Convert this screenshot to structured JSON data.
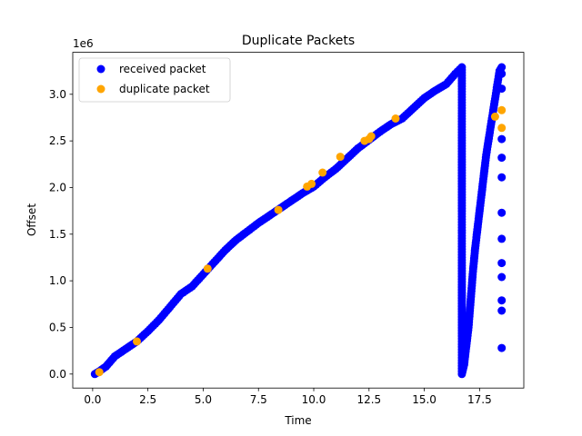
{
  "chart_data": {
    "type": "scatter",
    "title": "Duplicate Packets",
    "xlabel": "Time",
    "ylabel": "Offset",
    "y_multiplier_label": "1e6",
    "xlim": [
      -0.9,
      19.5
    ],
    "ylim": [
      -150000,
      3450000
    ],
    "x_ticks": [
      0.0,
      2.5,
      5.0,
      7.5,
      10.0,
      12.5,
      15.0,
      17.5
    ],
    "x_tick_labels": [
      "0.0",
      "2.5",
      "5.0",
      "7.5",
      "10.0",
      "12.5",
      "15.0",
      "17.5"
    ],
    "y_ticks": [
      0,
      500000,
      1000000,
      1500000,
      2000000,
      2500000,
      3000000
    ],
    "y_tick_labels": [
      "0.0",
      "0.5",
      "1.0",
      "1.5",
      "2.0",
      "2.5",
      "3.0"
    ],
    "grid": false,
    "legend_position": "top-left",
    "series": [
      {
        "name": "received packet",
        "color": "#0000ff",
        "x": [
          0.1,
          0.3,
          0.6,
          1.0,
          1.5,
          2.0,
          2.5,
          3.0,
          3.5,
          4.0,
          4.5,
          5.0,
          5.5,
          6.0,
          6.5,
          7.0,
          7.5,
          8.0,
          8.5,
          9.0,
          9.5,
          10.0,
          10.5,
          11.0,
          11.5,
          12.0,
          12.5,
          13.0,
          13.5,
          14.0,
          14.5,
          15.0,
          15.5,
          16.0,
          16.4,
          16.7,
          16.7,
          16.8,
          16.9,
          17.0,
          17.1,
          17.2,
          17.3,
          17.4,
          17.5,
          17.6,
          17.7,
          17.8,
          17.9,
          18.0,
          18.1,
          18.2,
          18.3,
          18.4,
          18.5,
          18.5,
          18.5,
          18.5,
          18.5,
          18.5,
          18.5,
          18.5,
          18.5,
          18.5,
          18.5,
          18.5,
          18.5
        ],
        "y": [
          0,
          30000,
          80000,
          190000,
          270000,
          350000,
          460000,
          580000,
          720000,
          860000,
          940000,
          1070000,
          1200000,
          1330000,
          1440000,
          1530000,
          1620000,
          1700000,
          1780000,
          1860000,
          1940000,
          2010000,
          2110000,
          2200000,
          2310000,
          2420000,
          2510000,
          2600000,
          2680000,
          2740000,
          2850000,
          2960000,
          3040000,
          3110000,
          3220000,
          3290000,
          0,
          100000,
          300000,
          500000,
          800000,
          1100000,
          1350000,
          1550000,
          1750000,
          1950000,
          2150000,
          2350000,
          2500000,
          2650000,
          2800000,
          2950000,
          3100000,
          3250000,
          3290000,
          3220000,
          3060000,
          2520000,
          2320000,
          2110000,
          1730000,
          1450000,
          1190000,
          1040000,
          790000,
          680000,
          280000
        ]
      },
      {
        "name": "duplicate packet",
        "color": "#ffa500",
        "x": [
          0.3,
          2.0,
          5.2,
          8.4,
          9.7,
          9.9,
          10.4,
          11.2,
          12.3,
          12.5,
          12.6,
          13.7,
          18.2,
          18.5,
          18.5
        ],
        "y": [
          20000,
          350000,
          1130000,
          1760000,
          2010000,
          2040000,
          2160000,
          2330000,
          2500000,
          2520000,
          2550000,
          2740000,
          2760000,
          2830000,
          2640000
        ]
      }
    ]
  }
}
